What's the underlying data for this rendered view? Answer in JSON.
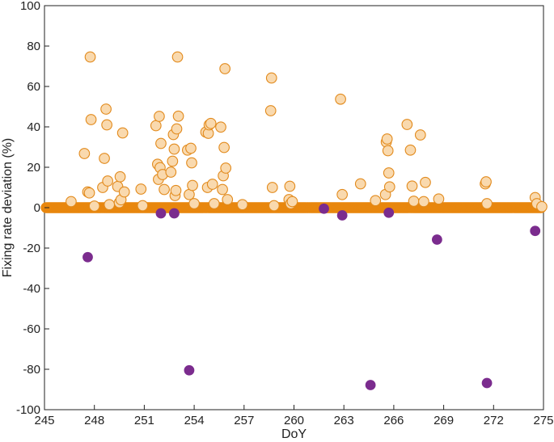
{
  "chart_data": {
    "type": "scatter",
    "xlabel": "DoY",
    "ylabel": "Fixing rate deviation (%)",
    "xlim": [
      245,
      275
    ],
    "ylim": [
      -100,
      100
    ],
    "xticks": [
      245,
      248,
      251,
      254,
      257,
      260,
      263,
      266,
      269,
      272,
      275
    ],
    "yticks": [
      -100,
      -80,
      -60,
      -40,
      -20,
      0,
      20,
      40,
      60,
      80,
      100
    ],
    "grid": false,
    "colors": {
      "zero_points_fill": "#E8870E",
      "positive_points_fill": "#F9D9AE",
      "positive_points_edge": "#E28A1C",
      "negative_points_fill": "#7B2C8E"
    },
    "series": [
      {
        "style": "zero-baseline",
        "x_range": [
          245.1,
          274.9
        ],
        "y": 0
      },
      {
        "style": "positive-deviation",
        "points": [
          [
            246.6,
            3.0
          ],
          [
            247.4,
            26.8
          ],
          [
            247.6,
            7.8
          ],
          [
            247.7,
            7.3
          ],
          [
            247.75,
            74.6
          ],
          [
            247.8,
            43.6
          ],
          [
            248.0,
            0.8
          ],
          [
            248.5,
            10.0
          ],
          [
            248.6,
            24.4
          ],
          [
            248.7,
            48.8
          ],
          [
            248.75,
            41.0
          ],
          [
            248.8,
            13.2
          ],
          [
            248.9,
            1.5
          ],
          [
            249.4,
            10.5
          ],
          [
            249.5,
            2.5
          ],
          [
            249.55,
            15.3
          ],
          [
            249.6,
            3.9
          ],
          [
            249.7,
            37.0
          ],
          [
            249.8,
            7.8
          ],
          [
            250.8,
            9.2
          ],
          [
            250.9,
            1.0
          ],
          [
            251.7,
            40.6
          ],
          [
            251.8,
            21.5
          ],
          [
            251.85,
            14.0
          ],
          [
            251.9,
            45.2
          ],
          [
            251.95,
            19.8
          ],
          [
            252.0,
            31.8
          ],
          [
            252.1,
            16.4
          ],
          [
            252.2,
            9.0
          ],
          [
            252.6,
            17.6
          ],
          [
            252.7,
            23.0
          ],
          [
            252.75,
            36.2
          ],
          [
            252.8,
            29.0
          ],
          [
            252.85,
            6.0
          ],
          [
            252.9,
            8.5
          ],
          [
            252.95,
            39.0
          ],
          [
            253.0,
            74.6
          ],
          [
            253.05,
            45.3
          ],
          [
            253.6,
            28.5
          ],
          [
            253.7,
            6.5
          ],
          [
            253.8,
            29.4
          ],
          [
            253.85,
            22.2
          ],
          [
            253.9,
            11.0
          ],
          [
            254.0,
            2.0
          ],
          [
            254.7,
            37.4
          ],
          [
            254.8,
            10.0
          ],
          [
            254.85,
            36.8
          ],
          [
            254.9,
            41.0
          ],
          [
            255.0,
            41.7
          ],
          [
            255.1,
            11.6
          ],
          [
            255.2,
            2.0
          ],
          [
            255.6,
            39.9
          ],
          [
            255.7,
            9.0
          ],
          [
            255.75,
            15.8
          ],
          [
            255.8,
            29.8
          ],
          [
            255.85,
            68.8
          ],
          [
            255.9,
            19.6
          ],
          [
            256.0,
            4.0
          ],
          [
            256.9,
            1.5
          ],
          [
            258.6,
            48.0
          ],
          [
            258.65,
            64.2
          ],
          [
            258.7,
            10.0
          ],
          [
            258.8,
            1.0
          ],
          [
            259.7,
            4.0
          ],
          [
            259.75,
            10.6
          ],
          [
            259.8,
            2.0
          ],
          [
            259.9,
            3.0
          ],
          [
            262.8,
            53.7
          ],
          [
            262.9,
            6.5
          ],
          [
            264.0,
            11.8
          ],
          [
            264.9,
            3.5
          ],
          [
            265.5,
            6.5
          ],
          [
            265.55,
            32.5
          ],
          [
            265.6,
            34.0
          ],
          [
            265.65,
            28.2
          ],
          [
            265.7,
            17.2
          ],
          [
            265.75,
            10.3
          ],
          [
            266.8,
            41.2
          ],
          [
            267.0,
            28.5
          ],
          [
            267.1,
            10.7
          ],
          [
            267.2,
            3.2
          ],
          [
            267.6,
            36.0
          ],
          [
            267.8,
            3.0
          ],
          [
            267.9,
            12.5
          ],
          [
            268.7,
            4.3
          ],
          [
            271.5,
            11.8
          ],
          [
            271.55,
            12.8
          ],
          [
            271.6,
            2.0
          ],
          [
            274.5,
            5.0
          ],
          [
            274.6,
            2.0
          ],
          [
            274.9,
            0.5
          ]
        ]
      },
      {
        "style": "negative-deviation",
        "points": [
          [
            247.6,
            -24.5
          ],
          [
            252.0,
            -2.8
          ],
          [
            252.8,
            -2.8
          ],
          [
            253.7,
            -80.5
          ],
          [
            261.8,
            -0.5
          ],
          [
            262.9,
            -3.8
          ],
          [
            264.6,
            -87.8
          ],
          [
            265.7,
            -2.5
          ],
          [
            268.6,
            -15.8
          ],
          [
            271.6,
            -86.8
          ],
          [
            274.5,
            -11.5
          ]
        ]
      }
    ]
  }
}
